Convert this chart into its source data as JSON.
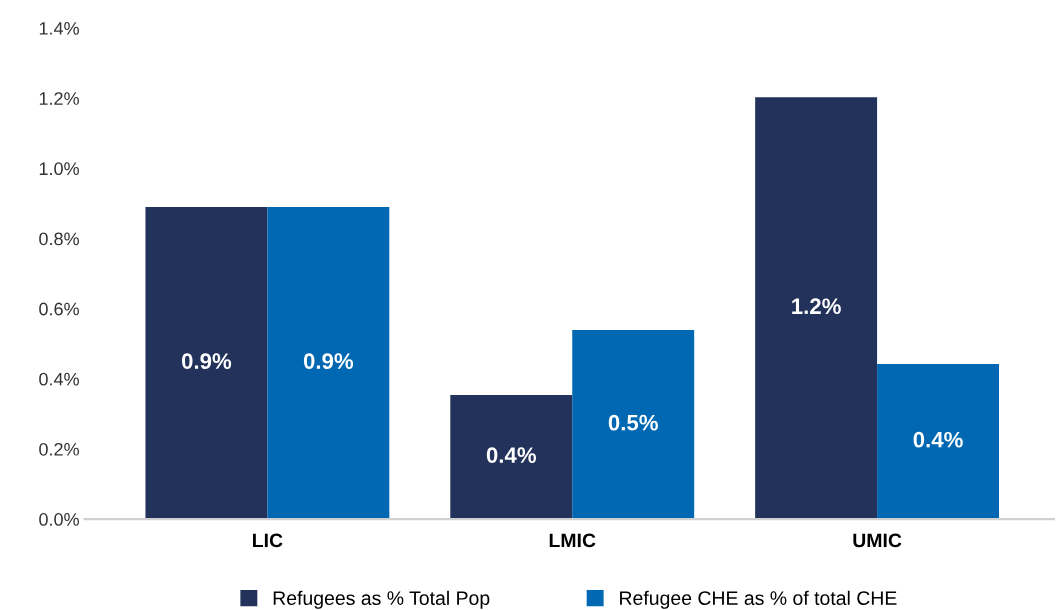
{
  "chart_data": {
    "type": "bar",
    "categories": [
      "LIC",
      "LMIC",
      "UMIC"
    ],
    "series": [
      {
        "name": "Refugees as % Total Pop",
        "color": "#22325a",
        "values": [
          0.89,
          0.354,
          1.203
        ],
        "value_labels": [
          "0.9%",
          "0.4%",
          "1.2%"
        ]
      },
      {
        "name": "Refugee CHE as % of total CHE",
        "color": "#0068b3",
        "values": [
          0.89,
          0.539,
          0.442
        ],
        "value_labels": [
          "0.9%",
          "0.5%",
          "0.4%"
        ]
      }
    ],
    "ylim": [
      0,
      1.4
    ],
    "yticks": [
      {
        "value": 0,
        "label": "0.0%"
      },
      {
        "value": 0.2,
        "label": "0.2%"
      },
      {
        "value": 0.4,
        "label": "0.4%"
      },
      {
        "value": 0.6,
        "label": "0.6%"
      },
      {
        "value": 0.8,
        "label": "0.8%"
      },
      {
        "value": 1.0,
        "label": "1.0%"
      },
      {
        "value": 1.2,
        "label": "1.2%"
      },
      {
        "value": 1.4,
        "label": "1.4%"
      }
    ],
    "grid": false,
    "legend": "bottom"
  }
}
